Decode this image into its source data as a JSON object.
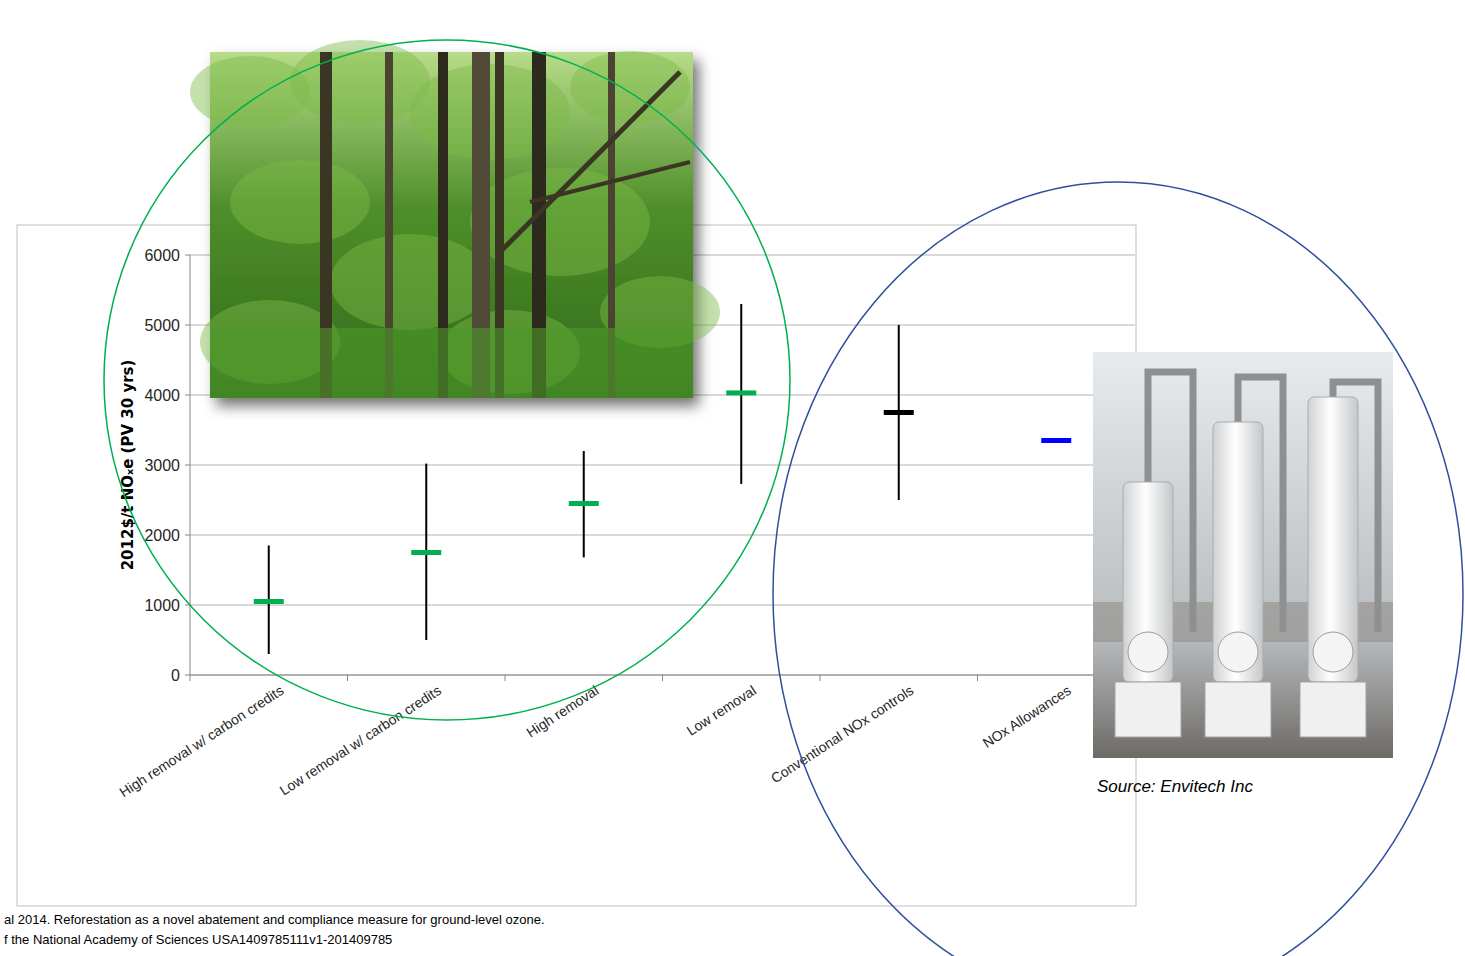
{
  "chart_data": {
    "type": "errorbar",
    "y_label": "2012$/t NOₓe (PV 30 yrs)",
    "categories": [
      "High removal w/ carbon credits",
      "Low removal w/ carbon credits",
      "High removal",
      "Low removal",
      "Conventional NOx controls",
      "NOx Allowances"
    ],
    "values": [
      1050,
      1750,
      2450,
      4030,
      3750,
      3350
    ],
    "lows": [
      300,
      500,
      1680,
      2730,
      2500,
      null
    ],
    "highs": [
      1850,
      3020,
      3200,
      5300,
      5000,
      null
    ],
    "colors": [
      "#00b050",
      "#00b050",
      "#00b050",
      "#00b050",
      "#000000",
      "#0000ff"
    ],
    "ylim": [
      0,
      6000
    ],
    "yticks": [
      0,
      1000,
      2000,
      3000,
      4000,
      5000,
      6000
    ],
    "grid": true,
    "source": "Source: Envitech Inc",
    "citation": [
      "al 2014. Reforestation as a novel abatement and compliance measure for ground-level ozone.",
      "f the National Academy of Sciences USA1409785111v1-201409785"
    ]
  }
}
